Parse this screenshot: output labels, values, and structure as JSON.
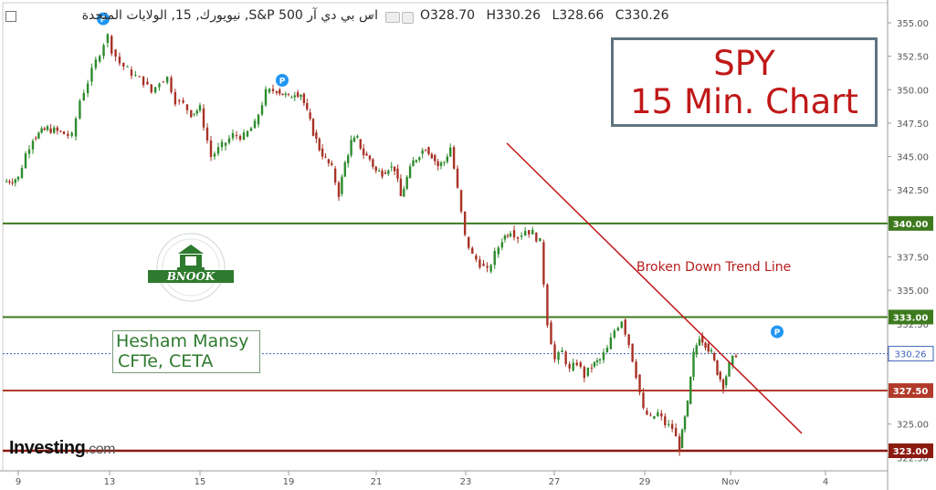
{
  "header": {
    "title": "اس بي دي آر S&P 500, نيويورك, 15, الولايات المتحدة",
    "ohlc": {
      "open_label": "O",
      "open": "328.70",
      "high_label": "H",
      "high": "330.26",
      "low_label": "L",
      "low": "328.66",
      "close_label": "C",
      "close": "330.26"
    }
  },
  "overlay": {
    "spy_line1": "SPY",
    "spy_line2": "15 Min. Chart",
    "author_line1": "Hesham Mansy",
    "author_line2": "CFTe, CETA",
    "trendline_label": "Broken Down Trend Line",
    "logo_text": "BNOOK",
    "brand_main": "Investing",
    "brand_suffix": ".com"
  },
  "colors": {
    "green_level": "#3d7a1e",
    "red_level": "#b23a2a",
    "dark_red_level": "#8b1a10",
    "trendline": "#c0181a",
    "last_price": "#3e63b8",
    "candle_up": "#2e8b2e",
    "candle_down": "#a83226",
    "pivot_marker": "#2196f3"
  },
  "chart_data": {
    "type": "candlestick",
    "ylim": [
      321.5,
      356.5
    ],
    "yticks": [
      322.5,
      325.0,
      327.5,
      330.0,
      332.5,
      335.0,
      337.5,
      340.0,
      342.5,
      345.0,
      347.5,
      350.0,
      352.5,
      355.0
    ],
    "x_ticks": [
      "9",
      "13",
      "15",
      "19",
      "21",
      "23",
      "27",
      "29",
      "Nov",
      "4"
    ],
    "grid": false,
    "levels": [
      {
        "value": 340.0,
        "label": "340.00",
        "role": "green"
      },
      {
        "value": 333.0,
        "label": "333.00",
        "role": "green"
      },
      {
        "value": 327.5,
        "label": "327.50",
        "role": "red"
      },
      {
        "value": 323.0,
        "label": "323.00",
        "role": "dark_red"
      }
    ],
    "last_price": {
      "value": 330.26,
      "label": "330.26"
    },
    "pivot_markers": [
      {
        "date": "13",
        "value": 355.3,
        "text": "P"
      },
      {
        "date": "19",
        "value": 350.7,
        "text": "P"
      },
      {
        "date": "Nov+",
        "value": 331.9,
        "text": "P"
      }
    ],
    "trendline": {
      "from": {
        "date": "23+",
        "value": 346.0
      },
      "to": {
        "date": "Nov++",
        "value": 324.3
      }
    },
    "price_path": [
      [
        0,
        343.1
      ],
      [
        2,
        343.4
      ],
      [
        3,
        345.2
      ],
      [
        4,
        346.4
      ],
      [
        6,
        347.1
      ],
      [
        7,
        346.7
      ],
      [
        8,
        346.5
      ],
      [
        9,
        349.2
      ],
      [
        10,
        350.6
      ],
      [
        11,
        352.1
      ],
      [
        12,
        353.5
      ],
      [
        12.5,
        354.0
      ],
      [
        13,
        353.0
      ],
      [
        14,
        352.0
      ],
      [
        15,
        351.5
      ],
      [
        16,
        351.0
      ],
      [
        17,
        350.6
      ],
      [
        18,
        349.8
      ],
      [
        19,
        350.6
      ],
      [
        20,
        350.9
      ],
      [
        21,
        349.2
      ],
      [
        22,
        348.9
      ],
      [
        23,
        348.2
      ],
      [
        24,
        348.6
      ],
      [
        25,
        345.0
      ],
      [
        26,
        345.8
      ],
      [
        27,
        346.6
      ],
      [
        28,
        346.5
      ],
      [
        29,
        347.4
      ],
      [
        30,
        349.8
      ],
      [
        31,
        350.0
      ],
      [
        32,
        349.4
      ],
      [
        33,
        349.8
      ],
      [
        34,
        349.7
      ],
      [
        35,
        348.3
      ],
      [
        36,
        346.8
      ],
      [
        37,
        345.6
      ],
      [
        38,
        344.8
      ],
      [
        39,
        344.1
      ],
      [
        40,
        342.2
      ],
      [
        41,
        344.5
      ],
      [
        42,
        346.1
      ],
      [
        43,
        346.3
      ],
      [
        44,
        345.2
      ],
      [
        45,
        344.8
      ],
      [
        46,
        343.9
      ],
      [
        47,
        343.8
      ],
      [
        48,
        344.2
      ],
      [
        49,
        344.1
      ],
      [
        50,
        342.0
      ],
      [
        51,
        343.4
      ],
      [
        52,
        344.6
      ],
      [
        53,
        345.2
      ],
      [
        54,
        345.7
      ],
      [
        55,
        345.1
      ],
      [
        56,
        344.3
      ],
      [
        57,
        344.6
      ],
      [
        58,
        345.7
      ],
      [
        59,
        342.5
      ],
      [
        60,
        339.0
      ],
      [
        61,
        337.6
      ],
      [
        62,
        337.0
      ],
      [
        63,
        336.4
      ],
      [
        64,
        337.7
      ],
      [
        65,
        338.8
      ],
      [
        66,
        339.5
      ],
      [
        67,
        339.0
      ],
      [
        68,
        339.5
      ],
      [
        69,
        339.3
      ],
      [
        70,
        338.6
      ],
      [
        71,
        332.6
      ],
      [
        72,
        329.8
      ],
      [
        73,
        330.4
      ],
      [
        74,
        329.0
      ],
      [
        75,
        329.6
      ],
      [
        76,
        328.6
      ],
      [
        77,
        329.3
      ],
      [
        78,
        329.8
      ],
      [
        79,
        330.6
      ],
      [
        80,
        332.0
      ],
      [
        81,
        332.8
      ],
      [
        82,
        331.0
      ],
      [
        83,
        328.7
      ],
      [
        84,
        326.0
      ],
      [
        85,
        325.4
      ],
      [
        86,
        325.8
      ],
      [
        87,
        325.0
      ],
      [
        88,
        324.7
      ],
      [
        89,
        323.2
      ],
      [
        90,
        326.5
      ],
      [
        91,
        330.2
      ],
      [
        92,
        331.6
      ],
      [
        93,
        331.0
      ],
      [
        94,
        330.3
      ],
      [
        95,
        328.9
      ],
      [
        96,
        327.9
      ],
      [
        97,
        329.4
      ],
      [
        98,
        330.26
      ]
    ]
  }
}
